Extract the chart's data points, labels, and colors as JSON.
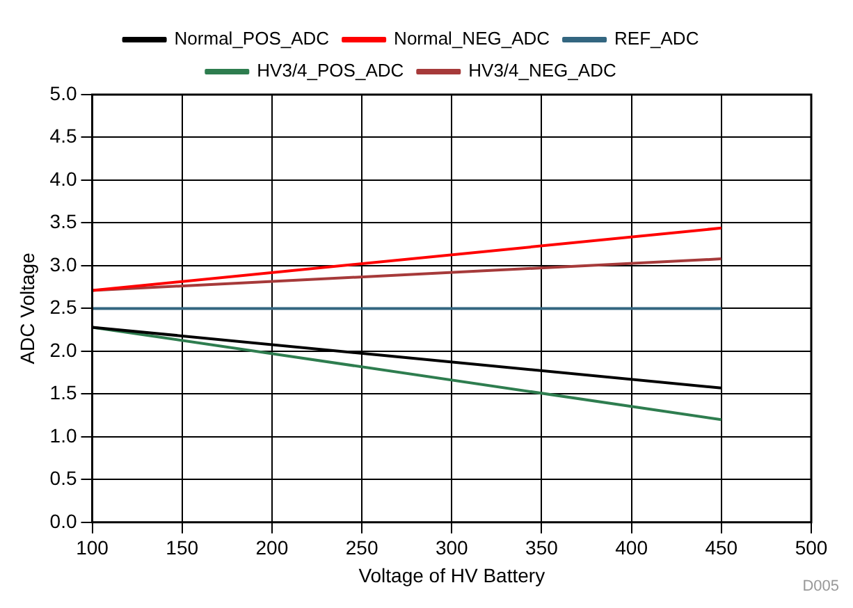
{
  "chart_data": {
    "type": "line",
    "xlabel": "Voltage of HV Battery",
    "ylabel": "ADC Voltage",
    "x": [
      100,
      450
    ],
    "series": [
      {
        "name": "Normal_POS_ADC",
        "color": "#000000",
        "values": [
          2.28,
          1.57
        ]
      },
      {
        "name": "Normal_NEG_ADC",
        "color": "#ff0000",
        "values": [
          2.71,
          3.44
        ]
      },
      {
        "name": "REF_ADC",
        "color": "#336680",
        "values": [
          2.5,
          2.5
        ]
      },
      {
        "name": "HV3/4_POS_ADC",
        "color": "#2e7d4f",
        "values": [
          2.28,
          1.2
        ]
      },
      {
        "name": "HV3/4_NEG_ADC",
        "color": "#a63a3a",
        "values": [
          2.71,
          3.08
        ]
      }
    ],
    "xlim": [
      100,
      500
    ],
    "xticks": [
      100,
      150,
      200,
      250,
      300,
      350,
      400,
      450,
      500
    ],
    "ylim": [
      0,
      5
    ],
    "yticks": [
      {
        "value": 0,
        "label": "0.0"
      },
      {
        "value": 0.5,
        "label": "0.5"
      },
      {
        "value": 1,
        "label": "1.0"
      },
      {
        "value": 1.5,
        "label": "1.5"
      },
      {
        "value": 2,
        "label": "2.0"
      },
      {
        "value": 2.5,
        "label": "2.5"
      },
      {
        "value": 3,
        "label": "3.0"
      },
      {
        "value": 3.5,
        "label": "3.5"
      },
      {
        "value": 4,
        "label": "4.0"
      },
      {
        "value": 4.5,
        "label": "4.5"
      },
      {
        "value": 5,
        "label": "5.0"
      }
    ],
    "grid": true,
    "legend": "top",
    "marker": "none",
    "line_style": "solid",
    "annotations": [
      "D005"
    ]
  }
}
